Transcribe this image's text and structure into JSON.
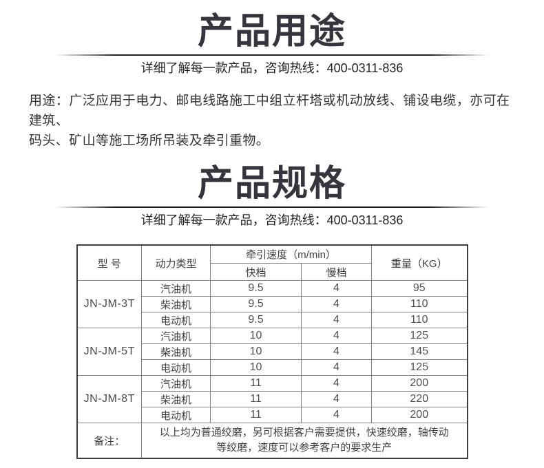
{
  "usage": {
    "title": "产品用途",
    "subtitle": "详细了解每一款产品，咨询热线：400-0311-836",
    "body_line1": "用途：广泛应用于电力、邮电线路施工中组立杆塔或机动放线、铺设电缆，亦可在建筑、",
    "body_line2": "码头、矿山等施工场所吊装及牵引重物。"
  },
  "spec": {
    "title": "产品规格",
    "subtitle": "详细了解每一款产品，咨询热线：400-0311-836",
    "table": {
      "headers": {
        "model": "型 号",
        "power_type": "动力类型",
        "speed_group": "牵引速度（m/min）",
        "fast": "快档",
        "slow": "慢档",
        "weight": "重量（KG）"
      },
      "groups": [
        {
          "model": "JN-JM-3T",
          "rows": [
            {
              "power": "汽油机",
              "fast": "9.5",
              "slow": "4",
              "weight": "95"
            },
            {
              "power": "柴油机",
              "fast": "9.5",
              "slow": "4",
              "weight": "110"
            },
            {
              "power": "电动机",
              "fast": "9.5",
              "slow": "4",
              "weight": "110"
            }
          ]
        },
        {
          "model": "JN-JM-5T",
          "rows": [
            {
              "power": "汽油机",
              "fast": "10",
              "slow": "4",
              "weight": "125"
            },
            {
              "power": "柴油机",
              "fast": "10",
              "slow": "4",
              "weight": "145"
            },
            {
              "power": "电动机",
              "fast": "10",
              "slow": "4",
              "weight": "125"
            }
          ]
        },
        {
          "model": "JN-JM-8T",
          "rows": [
            {
              "power": "汽油机",
              "fast": "11",
              "slow": "4",
              "weight": "200"
            },
            {
              "power": "柴油机",
              "fast": "11",
              "slow": "4",
              "weight": "220"
            },
            {
              "power": "电动机",
              "fast": "11",
              "slow": "4",
              "weight": "200"
            }
          ]
        }
      ],
      "remark_label": "备注：",
      "remark_line1": "以上均为普通绞磨，另可根据客户需要提供，快速绞磨，轴传动",
      "remark_line2": "等绞磨，速度可以参考客户的要求生产"
    }
  }
}
